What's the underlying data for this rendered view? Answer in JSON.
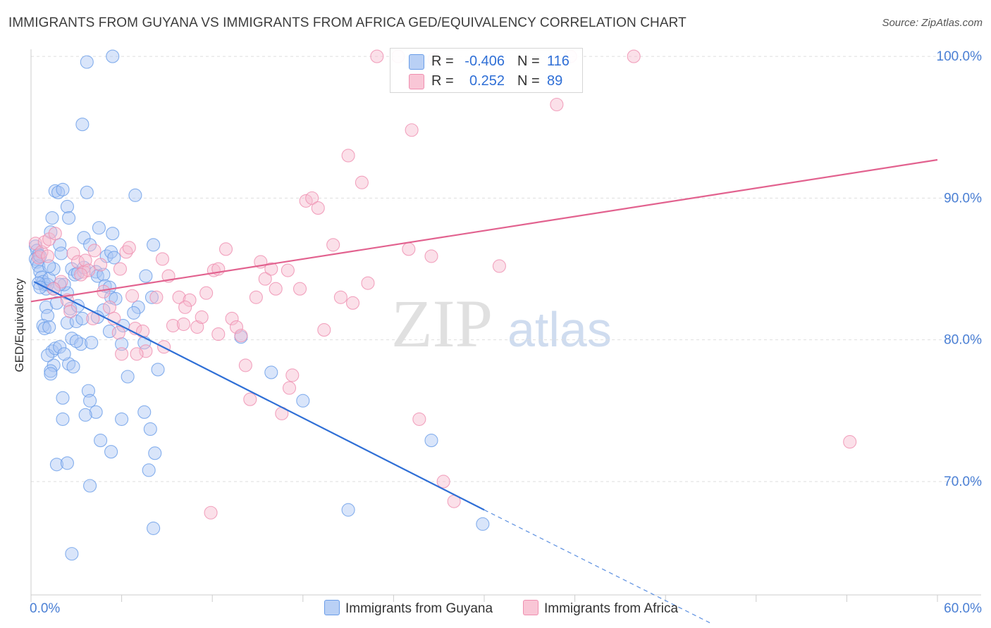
{
  "title": "IMMIGRANTS FROM GUYANA VS IMMIGRANTS FROM AFRICA GED/EQUIVALENCY CORRELATION CHART",
  "source": "Source: ZipAtlas.com",
  "watermark": {
    "zip": "ZIP",
    "atlas": "atlas"
  },
  "legend": {
    "rows": [
      {
        "r_label": "R =",
        "r_value": "-0.406",
        "n_label": "N =",
        "n_value": "116",
        "color": "#6a9de8",
        "fill": "#b9d0f5"
      },
      {
        "r_label": "R =",
        "r_value": "0.252",
        "n_label": "N =",
        "n_value": "89",
        "color": "#ef8fb0",
        "fill": "#f9c6d6"
      }
    ]
  },
  "bottom_legend": [
    {
      "label": "Immigrants from Guyana",
      "color": "#6a9de8",
      "fill": "#b9d0f5"
    },
    {
      "label": "Immigrants from Africa",
      "color": "#ef8fb0",
      "fill": "#f9c6d6"
    }
  ],
  "chart_data": {
    "type": "scatter",
    "title": "IMMIGRANTS FROM GUYANA VS IMMIGRANTS FROM AFRICA GED/EQUIVALENCY CORRELATION CHART",
    "xlabel": "",
    "ylabel": "GED/Equivalency",
    "xlim": [
      0,
      60
    ],
    "ylim": [
      62,
      100.5
    ],
    "x_tick_labels": [
      "0.0%",
      "60.0%"
    ],
    "y_ticks": [
      70,
      80,
      90,
      100
    ],
    "y_tick_labels": [
      "70.0%",
      "80.0%",
      "90.0%",
      "100.0%"
    ],
    "grid": "horizontal dashed",
    "legend_position": "top-center",
    "series": [
      {
        "name": "Immigrants from Guyana",
        "color": "#6a9de8",
        "trend": {
          "x0": 0.2,
          "y0": 84.1,
          "x1": 30.0,
          "y1": 68.0,
          "dashed_to_x": 45.0,
          "dashed_to_y": 60.0
        },
        "points": [
          [
            0.3,
            86.6
          ],
          [
            0.4,
            86.3
          ],
          [
            0.5,
            86.0
          ],
          [
            0.3,
            85.7
          ],
          [
            0.4,
            85.5
          ],
          [
            0.5,
            85.2
          ],
          [
            0.6,
            84.8
          ],
          [
            0.7,
            84.4
          ],
          [
            0.8,
            84.1
          ],
          [
            0.9,
            83.9
          ],
          [
            1.0,
            83.6
          ],
          [
            1.1,
            83.9
          ],
          [
            1.2,
            84.3
          ],
          [
            1.0,
            82.3
          ],
          [
            1.1,
            81.7
          ],
          [
            0.8,
            81.0
          ],
          [
            0.9,
            80.8
          ],
          [
            1.4,
            79.2
          ],
          [
            1.5,
            78.2
          ],
          [
            1.3,
            77.8
          ],
          [
            1.1,
            78.9
          ],
          [
            1.6,
            79.4
          ],
          [
            1.9,
            79.5
          ],
          [
            1.3,
            77.6
          ],
          [
            1.5,
            85.0
          ],
          [
            1.3,
            87.6
          ],
          [
            1.4,
            88.6
          ],
          [
            1.6,
            90.5
          ],
          [
            1.8,
            90.4
          ],
          [
            2.1,
            90.6
          ],
          [
            2.4,
            89.4
          ],
          [
            2.5,
            88.6
          ],
          [
            2.7,
            85.0
          ],
          [
            2.9,
            84.6
          ],
          [
            3.1,
            84.7
          ],
          [
            2.4,
            83.3
          ],
          [
            2.2,
            83.9
          ],
          [
            1.9,
            83.9
          ],
          [
            1.5,
            83.6
          ],
          [
            2.6,
            82.2
          ],
          [
            2.4,
            81.2
          ],
          [
            3.0,
            81.3
          ],
          [
            2.7,
            80.1
          ],
          [
            3.3,
            79.7
          ],
          [
            3.0,
            79.9
          ],
          [
            2.5,
            78.3
          ],
          [
            2.8,
            78.1
          ],
          [
            3.8,
            76.4
          ],
          [
            3.9,
            75.7
          ],
          [
            4.3,
            74.9
          ],
          [
            3.6,
            74.7
          ],
          [
            2.1,
            75.9
          ],
          [
            2.1,
            74.4
          ],
          [
            4.6,
            72.9
          ],
          [
            5.3,
            72.1
          ],
          [
            1.7,
            71.2
          ],
          [
            2.4,
            71.3
          ],
          [
            3.9,
            69.7
          ],
          [
            3.7,
            99.6
          ],
          [
            5.4,
            100.0
          ],
          [
            3.4,
            95.2
          ],
          [
            3.7,
            90.4
          ],
          [
            6.9,
            90.2
          ],
          [
            3.5,
            87.2
          ],
          [
            3.9,
            86.7
          ],
          [
            5.0,
            85.9
          ],
          [
            5.3,
            86.2
          ],
          [
            5.5,
            85.8
          ],
          [
            5.4,
            87.5
          ],
          [
            4.3,
            84.8
          ],
          [
            4.4,
            84.5
          ],
          [
            4.5,
            87.9
          ],
          [
            4.8,
            84.6
          ],
          [
            4.9,
            83.8
          ],
          [
            5.2,
            83.7
          ],
          [
            5.3,
            83.0
          ],
          [
            5.6,
            82.9
          ],
          [
            4.8,
            82.1
          ],
          [
            4.4,
            81.6
          ],
          [
            6.1,
            81.0
          ],
          [
            6.0,
            79.7
          ],
          [
            7.5,
            79.8
          ],
          [
            7.1,
            82.3
          ],
          [
            8.0,
            83.0
          ],
          [
            7.6,
            84.5
          ],
          [
            8.1,
            86.7
          ],
          [
            8.4,
            77.9
          ],
          [
            6.4,
            77.4
          ],
          [
            7.5,
            74.9
          ],
          [
            7.9,
            73.7
          ],
          [
            6.0,
            74.4
          ],
          [
            8.2,
            72.0
          ],
          [
            7.8,
            70.8
          ],
          [
            8.1,
            66.7
          ],
          [
            2.7,
            64.9
          ],
          [
            13.9,
            80.2
          ],
          [
            15.9,
            77.7
          ],
          [
            18.0,
            75.7
          ],
          [
            21.0,
            68.0
          ],
          [
            26.5,
            72.9
          ],
          [
            29.9,
            67.0
          ],
          [
            1.9,
            86.7
          ],
          [
            2.0,
            86.1
          ],
          [
            0.5,
            84.0
          ],
          [
            0.6,
            83.7
          ],
          [
            1.7,
            82.6
          ],
          [
            3.1,
            82.4
          ],
          [
            3.4,
            81.5
          ],
          [
            1.2,
            80.9
          ],
          [
            2.2,
            79.0
          ],
          [
            1.2,
            85.2
          ],
          [
            3.5,
            85.1
          ],
          [
            4.0,
            79.8
          ],
          [
            0.6,
            85.9
          ],
          [
            6.8,
            81.9
          ],
          [
            5.2,
            80.6
          ]
        ]
      },
      {
        "name": "Immigrants from Africa",
        "color": "#ef8fb0",
        "trend": {
          "x0": 0.0,
          "y0": 82.7,
          "x1": 60.0,
          "y1": 92.7
        },
        "points": [
          [
            0.3,
            86.8
          ],
          [
            0.5,
            85.8
          ],
          [
            0.7,
            86.2
          ],
          [
            0.9,
            86.9
          ],
          [
            1.1,
            85.9
          ],
          [
            1.2,
            87.1
          ],
          [
            1.6,
            87.5
          ],
          [
            2.0,
            84.1
          ],
          [
            2.4,
            82.8
          ],
          [
            2.8,
            86.1
          ],
          [
            3.1,
            85.5
          ],
          [
            3.5,
            84.8
          ],
          [
            3.6,
            85.6
          ],
          [
            3.8,
            84.9
          ],
          [
            4.2,
            86.3
          ],
          [
            4.6,
            85.3
          ],
          [
            4.8,
            83.4
          ],
          [
            5.2,
            82.3
          ],
          [
            5.5,
            81.5
          ],
          [
            5.8,
            80.5
          ],
          [
            6.3,
            86.2
          ],
          [
            6.5,
            86.5
          ],
          [
            6.7,
            83.1
          ],
          [
            6.9,
            80.8
          ],
          [
            7.4,
            80.6
          ],
          [
            7.6,
            79.2
          ],
          [
            8.3,
            83.0
          ],
          [
            8.7,
            85.7
          ],
          [
            9.1,
            84.5
          ],
          [
            9.4,
            81.0
          ],
          [
            9.8,
            83.0
          ],
          [
            10.1,
            81.1
          ],
          [
            10.5,
            82.8
          ],
          [
            11.0,
            80.9
          ],
          [
            11.3,
            81.6
          ],
          [
            11.6,
            83.3
          ],
          [
            12.1,
            84.9
          ],
          [
            12.4,
            80.4
          ],
          [
            12.9,
            86.4
          ],
          [
            13.3,
            81.5
          ],
          [
            13.6,
            80.9
          ],
          [
            13.9,
            80.3
          ],
          [
            14.2,
            78.2
          ],
          [
            14.5,
            75.8
          ],
          [
            14.9,
            83.0
          ],
          [
            15.2,
            85.5
          ],
          [
            15.5,
            84.3
          ],
          [
            15.9,
            85.0
          ],
          [
            16.2,
            83.6
          ],
          [
            16.6,
            74.8
          ],
          [
            17.0,
            84.9
          ],
          [
            17.3,
            77.5
          ],
          [
            17.8,
            83.6
          ],
          [
            18.2,
            89.8
          ],
          [
            18.6,
            90.0
          ],
          [
            19.0,
            89.3
          ],
          [
            19.4,
            80.7
          ],
          [
            20.0,
            86.7
          ],
          [
            20.5,
            83.0
          ],
          [
            21.0,
            93.0
          ],
          [
            21.3,
            82.6
          ],
          [
            21.9,
            91.1
          ],
          [
            22.3,
            84.0
          ],
          [
            22.9,
            100.0
          ],
          [
            24.3,
            100.0
          ],
          [
            25.0,
            86.4
          ],
          [
            25.2,
            94.8
          ],
          [
            25.7,
            74.4
          ],
          [
            26.5,
            85.9
          ],
          [
            26.7,
            99.8
          ],
          [
            27.3,
            70.0
          ],
          [
            28.0,
            68.6
          ],
          [
            31.0,
            85.2
          ],
          [
            34.8,
            96.6
          ],
          [
            35.7,
            100.0
          ],
          [
            39.9,
            100.0
          ],
          [
            54.2,
            72.8
          ],
          [
            12.4,
            85.0
          ],
          [
            10.2,
            82.3
          ],
          [
            7.0,
            79.0
          ],
          [
            3.3,
            84.6
          ],
          [
            4.1,
            81.5
          ],
          [
            1.5,
            83.6
          ],
          [
            2.6,
            82.0
          ],
          [
            5.9,
            85.0
          ],
          [
            8.8,
            79.5
          ],
          [
            11.9,
            67.8
          ],
          [
            17.1,
            76.6
          ],
          [
            6.0,
            79.0
          ]
        ]
      }
    ]
  }
}
